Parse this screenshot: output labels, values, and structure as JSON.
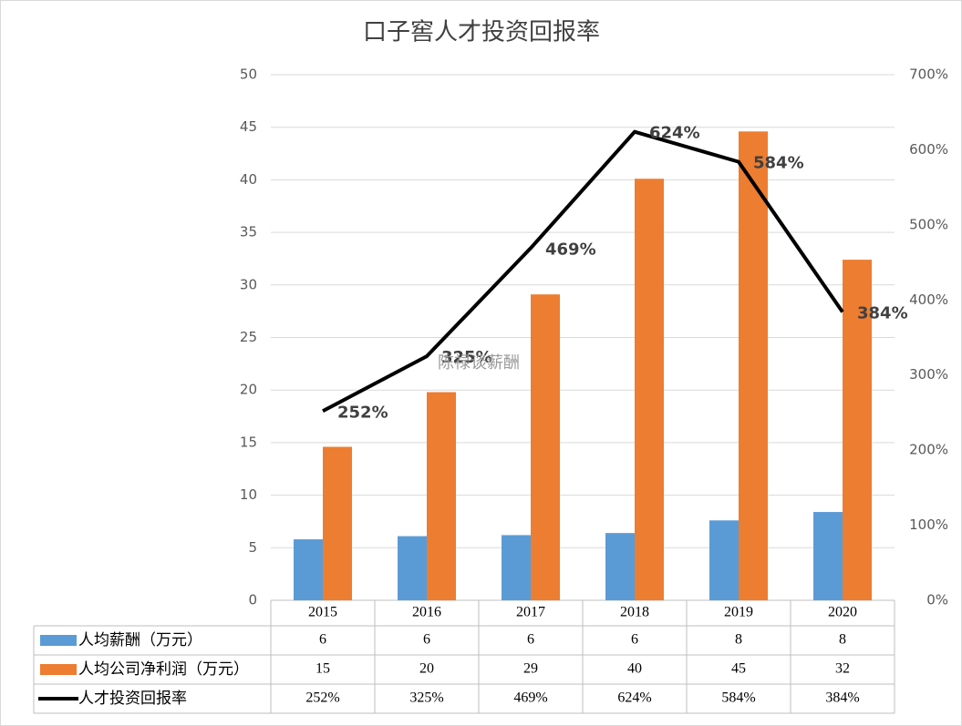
{
  "chart_data": {
    "type": "bar",
    "title": "口子窖人才投资回报率",
    "categories": [
      "2015",
      "2016",
      "2017",
      "2018",
      "2019",
      "2020"
    ],
    "series": [
      {
        "name": "人均薪酬（万元）",
        "type": "bar",
        "color": "#5b9bd5",
        "values": [
          5.8,
          6.1,
          6.2,
          6.4,
          7.6,
          8.4
        ],
        "value_labels": [
          "6",
          "6",
          "6",
          "6",
          "8",
          "8"
        ]
      },
      {
        "name": "人均公司净利润（万元）",
        "type": "bar",
        "color": "#ed7d31",
        "values": [
          14.6,
          19.8,
          29.1,
          40.1,
          44.6,
          32.4
        ],
        "value_labels": [
          "15",
          "20",
          "29",
          "40",
          "45",
          "32"
        ]
      },
      {
        "name": "人才投资回报率",
        "type": "line",
        "axis": "y2",
        "color": "#000000",
        "values": [
          252,
          325,
          469,
          624,
          584,
          384
        ],
        "value_labels": [
          "252%",
          "325%",
          "469%",
          "624%",
          "584%",
          "384%"
        ]
      }
    ],
    "ylim": [
      0,
      50
    ],
    "yticks": [
      0,
      5,
      10,
      15,
      20,
      25,
      30,
      35,
      40,
      45,
      50
    ],
    "y2lim": [
      0,
      700
    ],
    "y2ticks": [
      {
        "value": 0,
        "label": "0%"
      },
      {
        "value": 100,
        "label": "100%"
      },
      {
        "value": 200,
        "label": "200%"
      },
      {
        "value": 300,
        "label": "300%"
      },
      {
        "value": 400,
        "label": "400%"
      },
      {
        "value": 500,
        "label": "500%"
      },
      {
        "value": 600,
        "label": "600%"
      },
      {
        "value": 700,
        "label": "700%"
      }
    ],
    "grid": true,
    "watermark": "陈禄谈薪酬"
  }
}
